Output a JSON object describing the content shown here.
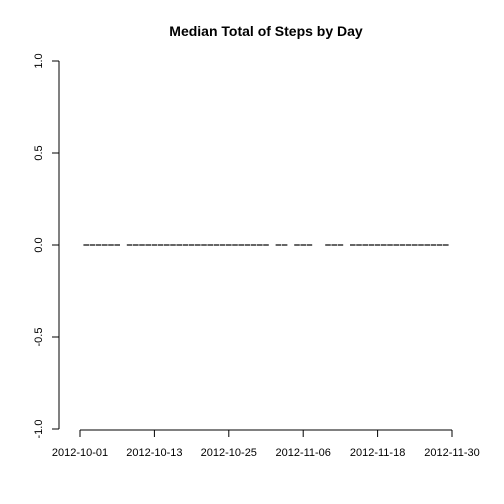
{
  "chart_data": {
    "type": "bar",
    "title": "Median Total of Steps by Day",
    "xlabel": "",
    "ylabel": "",
    "ylim": [
      -1.0,
      1.0
    ],
    "y_ticks": [
      "-1.0",
      "-0.5",
      "0.0",
      "0.5",
      "1.0"
    ],
    "x_tick_labels": [
      "2012-10-01",
      "2012-10-13",
      "2012-10-25",
      "2012-11-06",
      "2012-11-18",
      "2012-11-30"
    ],
    "grid": false,
    "legend": "none",
    "x": [
      "2012-10-01",
      "2012-10-02",
      "2012-10-03",
      "2012-10-04",
      "2012-10-05",
      "2012-10-06",
      "2012-10-07",
      "2012-10-08",
      "2012-10-09",
      "2012-10-10",
      "2012-10-11",
      "2012-10-12",
      "2012-10-13",
      "2012-10-14",
      "2012-10-15",
      "2012-10-16",
      "2012-10-17",
      "2012-10-18",
      "2012-10-19",
      "2012-10-20",
      "2012-10-21",
      "2012-10-22",
      "2012-10-23",
      "2012-10-24",
      "2012-10-25",
      "2012-10-26",
      "2012-10-27",
      "2012-10-28",
      "2012-10-29",
      "2012-10-30",
      "2012-10-31",
      "2012-11-01",
      "2012-11-02",
      "2012-11-03",
      "2012-11-04",
      "2012-11-05",
      "2012-11-06",
      "2012-11-07",
      "2012-11-08",
      "2012-11-09",
      "2012-11-10",
      "2012-11-11",
      "2012-11-12",
      "2012-11-13",
      "2012-11-14",
      "2012-11-15",
      "2012-11-16",
      "2012-11-17",
      "2012-11-18",
      "2012-11-19",
      "2012-11-20",
      "2012-11-21",
      "2012-11-22",
      "2012-11-23",
      "2012-11-24",
      "2012-11-25",
      "2012-11-26",
      "2012-11-27",
      "2012-11-28",
      "2012-11-29",
      "2012-11-30"
    ],
    "values": [
      null,
      0,
      0,
      0,
      0,
      0,
      0,
      null,
      0,
      0,
      0,
      0,
      0,
      0,
      0,
      0,
      0,
      0,
      0,
      0,
      0,
      0,
      0,
      0,
      0,
      0,
      0,
      0,
      0,
      0,
      0,
      null,
      0,
      0,
      null,
      0,
      0,
      0,
      null,
      null,
      0,
      0,
      0,
      null,
      0,
      0,
      0,
      0,
      0,
      0,
      0,
      0,
      0,
      0,
      0,
      0,
      0,
      0,
      0,
      0,
      null
    ]
  }
}
